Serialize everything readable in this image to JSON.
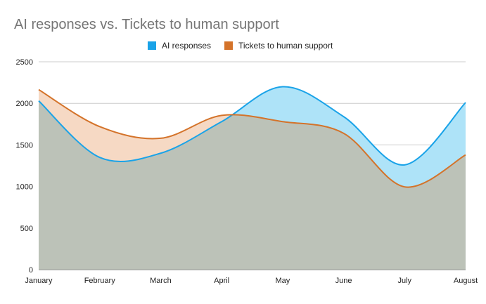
{
  "chart_data": {
    "type": "area",
    "title": "AI responses vs. Tickets to human support",
    "xlabel": "",
    "ylabel": "",
    "categories": [
      "January",
      "February",
      "March",
      "April",
      "May",
      "June",
      "July",
      "August"
    ],
    "series": [
      {
        "name": "AI responses",
        "values": [
          2030,
          1350,
          1400,
          1780,
          2200,
          1840,
          1260,
          2010
        ],
        "color": "#1aa3e8",
        "fill": "#aee3f8"
      },
      {
        "name": "Tickets to human support",
        "values": [
          2165,
          1720,
          1580,
          1855,
          1780,
          1640,
          995,
          1380
        ],
        "color": "#d4732a",
        "fill": "#f6d9c4"
      }
    ],
    "overlap_fill": "#bcc2b8",
    "ylim": [
      0,
      2500
    ],
    "yticks": [
      "0",
      "500",
      "1000",
      "1500",
      "2000",
      "2500"
    ],
    "ytick_values": [
      0,
      500,
      1000,
      1500,
      2000,
      2500
    ],
    "grid": true,
    "legend_position": "top-center"
  }
}
